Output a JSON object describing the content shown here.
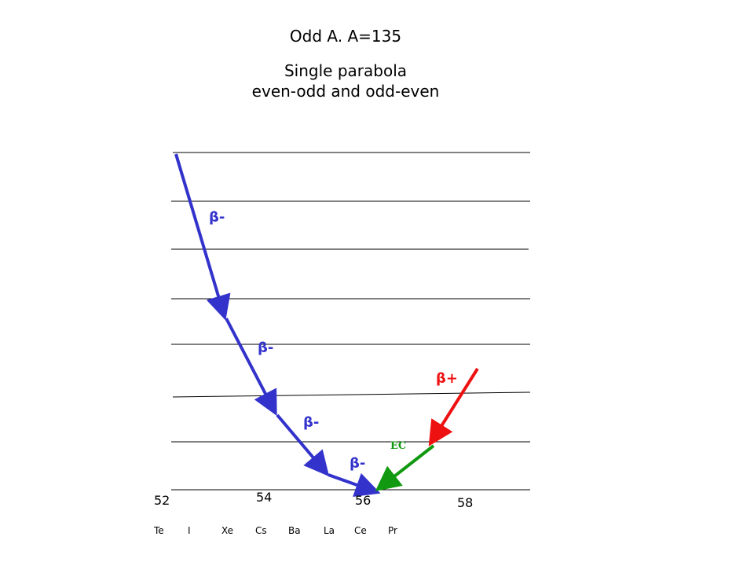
{
  "title": "Odd A. A=135",
  "subtitle_line1": "Single parabola",
  "subtitle_line2": "even-odd and odd-even",
  "colors": {
    "beta_minus": "#3333cc",
    "beta_plus": "#ee1111",
    "ec": "#119911",
    "lines": "#000000"
  },
  "decay_labels": {
    "beta_minus_1": "β-",
    "beta_minus_2": "β-",
    "beta_minus_3": "β-",
    "beta_minus_4": "β-",
    "beta_plus": "β+",
    "ec": "EC"
  },
  "z_labels": [
    "52",
    "54",
    "56",
    "58"
  ],
  "elements": [
    "Te",
    "I",
    "Xe",
    "Cs",
    "Ba",
    "La",
    "Ce",
    "Pr"
  ]
}
